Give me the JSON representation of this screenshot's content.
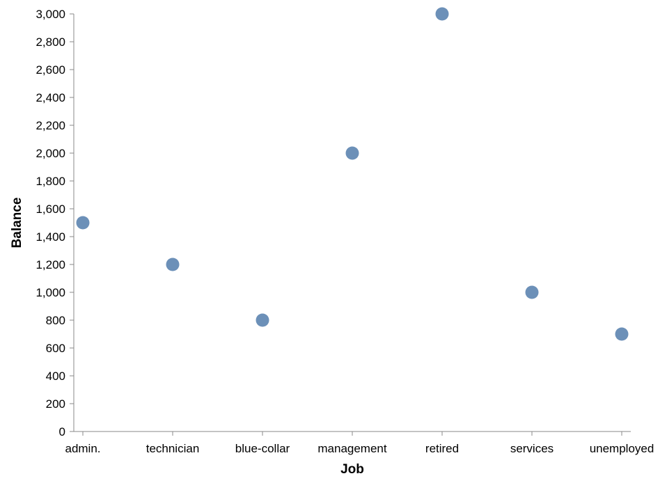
{
  "chart_data": {
    "type": "scatter",
    "categories": [
      "admin.",
      "technician",
      "blue-collar",
      "management",
      "retired",
      "services",
      "unemployed"
    ],
    "values": [
      1500,
      1200,
      800,
      2000,
      3000,
      1000,
      700
    ],
    "xlabel": "Job",
    "ylabel": "Balance",
    "ylim": [
      0,
      3000
    ],
    "yticks": [
      "0",
      "200",
      "400",
      "600",
      "800",
      "1,000",
      "1,200",
      "1,400",
      "1,600",
      "1,800",
      "2,000",
      "2,200",
      "2,400",
      "2,600",
      "2,800",
      "3,000"
    ],
    "grid": false,
    "point_color": "#4c78a8"
  }
}
